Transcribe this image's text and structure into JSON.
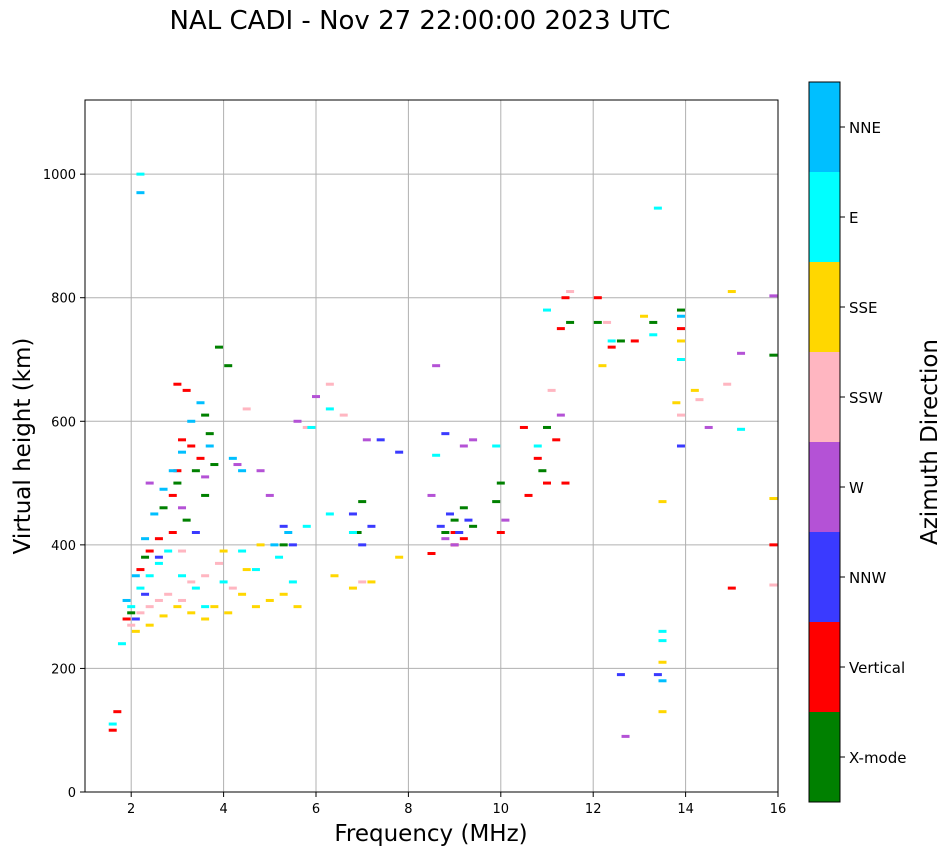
{
  "chart_data": {
    "type": "scatter",
    "title": "NAL CADI - Nov 27 22:00:00 2023 UTC",
    "xlabel": "Frequency (MHz)",
    "ylabel": "Virtual height (km)",
    "xlim": [
      1,
      16
    ],
    "ylim": [
      0,
      1120
    ],
    "grid": true,
    "x_ticks": [
      2,
      4,
      6,
      8,
      10,
      12,
      14,
      16
    ],
    "y_ticks": [
      0,
      200,
      400,
      600,
      800,
      1000
    ],
    "colorbar": {
      "label": "Azimuth Direction",
      "categories": [
        "X-mode",
        "Vertical",
        "NNW",
        "W",
        "SSW",
        "SSE",
        "E",
        "NNE"
      ],
      "colors": [
        "#008000",
        "#ff0000",
        "#3a3aff",
        "#b452d6",
        "#ffb6c1",
        "#ffd700",
        "#00ffff",
        "#00bfff"
      ]
    },
    "series": [
      {
        "name": "X-mode",
        "color": "#008000",
        "points": [
          [
            2.0,
            290
          ],
          [
            2.3,
            380
          ],
          [
            2.7,
            460
          ],
          [
            3.0,
            500
          ],
          [
            3.2,
            440
          ],
          [
            3.4,
            520
          ],
          [
            3.6,
            480
          ],
          [
            3.8,
            530
          ],
          [
            3.6,
            610
          ],
          [
            3.9,
            720
          ],
          [
            4.1,
            690
          ],
          [
            3.7,
            580
          ],
          [
            5.3,
            400
          ],
          [
            6.9,
            420
          ],
          [
            7.0,
            470
          ],
          [
            8.8,
            420
          ],
          [
            9.0,
            440
          ],
          [
            9.2,
            460
          ],
          [
            9.4,
            430
          ],
          [
            9.9,
            470
          ],
          [
            10.0,
            500
          ],
          [
            10.9,
            520
          ],
          [
            11.0,
            590
          ],
          [
            11.5,
            760
          ],
          [
            12.1,
            760
          ],
          [
            13.3,
            760
          ],
          [
            13.9,
            780
          ],
          [
            15.9,
            707
          ],
          [
            12.6,
            730
          ]
        ]
      },
      {
        "name": "Vertical",
        "color": "#ff0000",
        "points": [
          [
            1.6,
            100
          ],
          [
            1.7,
            130
          ],
          [
            1.9,
            280
          ],
          [
            2.2,
            360
          ],
          [
            2.4,
            390
          ],
          [
            2.6,
            410
          ],
          [
            2.9,
            480
          ],
          [
            3.0,
            520
          ],
          [
            3.1,
            570
          ],
          [
            3.3,
            560
          ],
          [
            3.0,
            660
          ],
          [
            3.2,
            650
          ],
          [
            3.5,
            540
          ],
          [
            2.9,
            420
          ],
          [
            9.0,
            420
          ],
          [
            9.2,
            410
          ],
          [
            9.0,
            400
          ],
          [
            10.0,
            420
          ],
          [
            10.6,
            480
          ],
          [
            11.0,
            500
          ],
          [
            11.4,
            500
          ],
          [
            11.2,
            570
          ],
          [
            11.3,
            750
          ],
          [
            11.4,
            800
          ],
          [
            12.1,
            800
          ],
          [
            12.4,
            720
          ],
          [
            12.9,
            730
          ],
          [
            13.9,
            750
          ],
          [
            15.0,
            330
          ],
          [
            15.9,
            400
          ],
          [
            8.5,
            386
          ],
          [
            10.5,
            590
          ],
          [
            10.8,
            540
          ]
        ]
      },
      {
        "name": "NNW",
        "color": "#3a3aff",
        "points": [
          [
            2.1,
            280
          ],
          [
            2.3,
            320
          ],
          [
            2.6,
            380
          ],
          [
            3.4,
            420
          ],
          [
            5.3,
            430
          ],
          [
            5.5,
            400
          ],
          [
            6.8,
            450
          ],
          [
            7.0,
            400
          ],
          [
            7.2,
            430
          ],
          [
            7.4,
            570
          ],
          [
            7.8,
            550
          ],
          [
            8.7,
            430
          ],
          [
            8.9,
            450
          ],
          [
            9.1,
            420
          ],
          [
            9.3,
            440
          ],
          [
            8.8,
            580
          ],
          [
            12.6,
            190
          ],
          [
            13.4,
            190
          ],
          [
            13.9,
            560
          ]
        ]
      },
      {
        "name": "W",
        "color": "#b452d6",
        "points": [
          [
            2.4,
            500
          ],
          [
            3.1,
            460
          ],
          [
            3.6,
            510
          ],
          [
            4.3,
            530
          ],
          [
            4.8,
            520
          ],
          [
            5.0,
            480
          ],
          [
            5.6,
            600
          ],
          [
            6.0,
            640
          ],
          [
            7.1,
            570
          ],
          [
            8.5,
            480
          ],
          [
            8.6,
            690
          ],
          [
            8.8,
            410
          ],
          [
            9.0,
            400
          ],
          [
            9.2,
            560
          ],
          [
            9.4,
            570
          ],
          [
            10.1,
            440
          ],
          [
            11.3,
            610
          ],
          [
            14.5,
            590
          ],
          [
            15.2,
            710
          ],
          [
            15.9,
            803
          ],
          [
            12.7,
            90
          ]
        ]
      },
      {
        "name": "SSW",
        "color": "#ffb6c1",
        "points": [
          [
            2.0,
            270
          ],
          [
            2.2,
            290
          ],
          [
            2.4,
            300
          ],
          [
            2.6,
            310
          ],
          [
            2.8,
            320
          ],
          [
            3.1,
            310
          ],
          [
            3.3,
            340
          ],
          [
            3.6,
            350
          ],
          [
            3.9,
            370
          ],
          [
            4.2,
            330
          ],
          [
            3.1,
            390
          ],
          [
            4.5,
            620
          ],
          [
            5.8,
            590
          ],
          [
            6.3,
            660
          ],
          [
            6.6,
            610
          ],
          [
            7.0,
            340
          ],
          [
            11.1,
            650
          ],
          [
            11.5,
            810
          ],
          [
            12.3,
            760
          ],
          [
            13.9,
            610
          ],
          [
            14.3,
            635
          ],
          [
            14.9,
            660
          ],
          [
            15.9,
            335
          ]
        ]
      },
      {
        "name": "SSE",
        "color": "#ffd700",
        "points": [
          [
            2.1,
            260
          ],
          [
            2.4,
            270
          ],
          [
            2.7,
            285
          ],
          [
            3.0,
            300
          ],
          [
            3.3,
            290
          ],
          [
            3.6,
            280
          ],
          [
            3.8,
            300
          ],
          [
            4.1,
            290
          ],
          [
            4.4,
            320
          ],
          [
            4.7,
            300
          ],
          [
            5.0,
            310
          ],
          [
            5.3,
            320
          ],
          [
            5.6,
            300
          ],
          [
            4.0,
            390
          ],
          [
            4.5,
            360
          ],
          [
            4.8,
            400
          ],
          [
            6.4,
            350
          ],
          [
            6.8,
            330
          ],
          [
            7.2,
            340
          ],
          [
            7.8,
            380
          ],
          [
            12.2,
            690
          ],
          [
            13.1,
            770
          ],
          [
            13.5,
            470
          ],
          [
            13.5,
            210
          ],
          [
            13.5,
            130
          ],
          [
            14.2,
            650
          ],
          [
            15.0,
            810
          ],
          [
            15.9,
            475
          ],
          [
            13.8,
            630
          ],
          [
            13.9,
            730
          ]
        ]
      },
      {
        "name": "E",
        "color": "#00ffff",
        "points": [
          [
            1.6,
            110
          ],
          [
            1.8,
            240
          ],
          [
            2.0,
            300
          ],
          [
            2.2,
            330
          ],
          [
            2.4,
            350
          ],
          [
            2.6,
            370
          ],
          [
            2.8,
            390
          ],
          [
            3.1,
            350
          ],
          [
            3.4,
            330
          ],
          [
            3.6,
            300
          ],
          [
            4.0,
            340
          ],
          [
            4.4,
            390
          ],
          [
            4.7,
            360
          ],
          [
            5.2,
            380
          ],
          [
            5.5,
            340
          ],
          [
            5.8,
            430
          ],
          [
            5.9,
            590
          ],
          [
            6.3,
            450
          ],
          [
            6.8,
            420
          ],
          [
            6.3,
            620
          ],
          [
            8.6,
            545
          ],
          [
            9.9,
            560
          ],
          [
            10.8,
            560
          ],
          [
            11.0,
            780
          ],
          [
            12.4,
            730
          ],
          [
            13.3,
            740
          ],
          [
            13.5,
            260
          ],
          [
            13.5,
            245
          ],
          [
            13.9,
            700
          ],
          [
            15.2,
            587
          ],
          [
            13.4,
            945
          ],
          [
            2.2,
            1000
          ]
        ]
      },
      {
        "name": "NNE",
        "color": "#00bfff",
        "points": [
          [
            1.9,
            310
          ],
          [
            2.1,
            350
          ],
          [
            2.3,
            410
          ],
          [
            2.5,
            450
          ],
          [
            2.7,
            490
          ],
          [
            2.9,
            520
          ],
          [
            3.1,
            550
          ],
          [
            3.3,
            600
          ],
          [
            3.5,
            630
          ],
          [
            3.7,
            560
          ],
          [
            4.2,
            540
          ],
          [
            4.4,
            520
          ],
          [
            5.1,
            400
          ],
          [
            5.4,
            420
          ],
          [
            2.2,
            970
          ],
          [
            13.5,
            180
          ],
          [
            13.9,
            770
          ]
        ]
      }
    ]
  }
}
